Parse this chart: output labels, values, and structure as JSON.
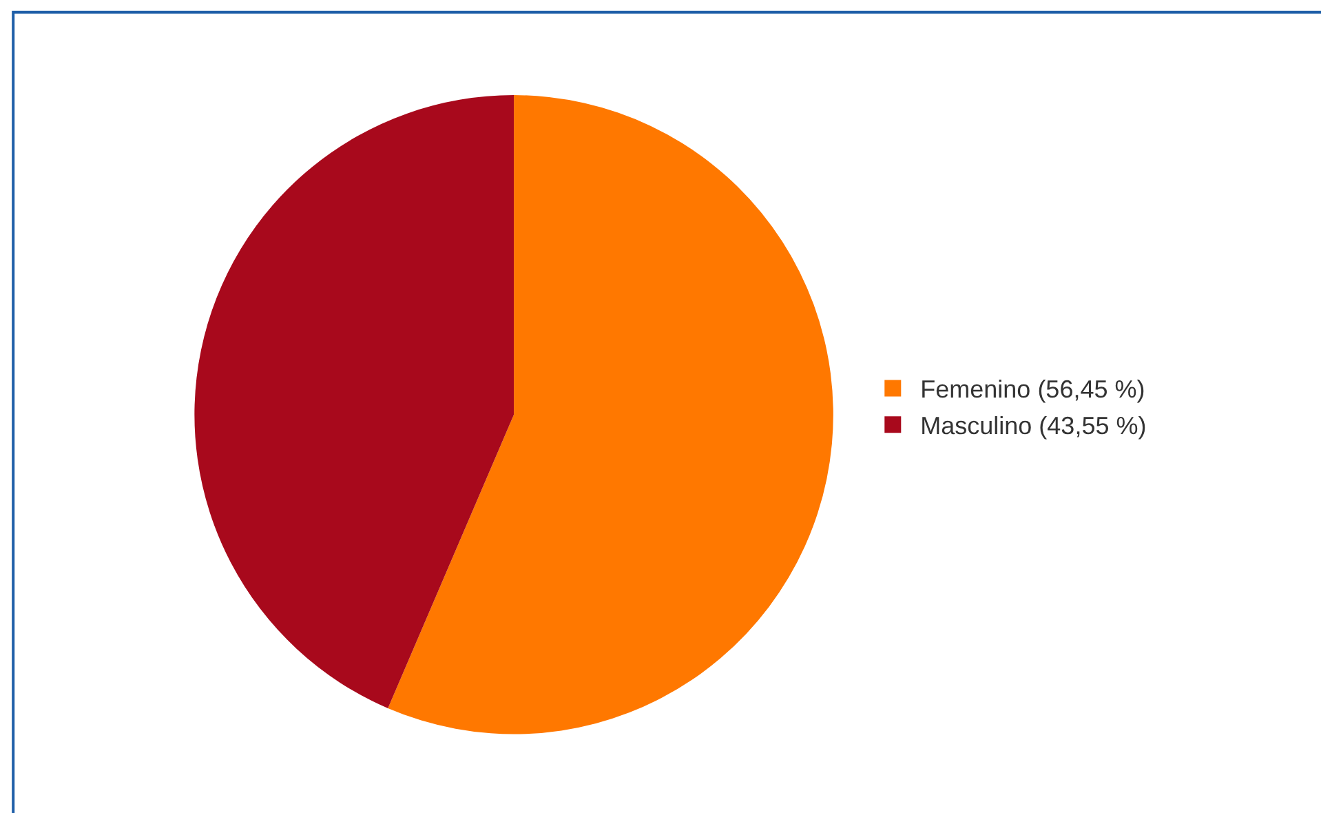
{
  "chart_data": {
    "type": "pie",
    "categories": [
      "Femenino (56,45 %)",
      "Masculino (43,55 %)"
    ],
    "values": [
      56.45,
      43.55
    ],
    "colors": [
      "#ff7800",
      "#a8091c"
    ],
    "legend": "right"
  }
}
